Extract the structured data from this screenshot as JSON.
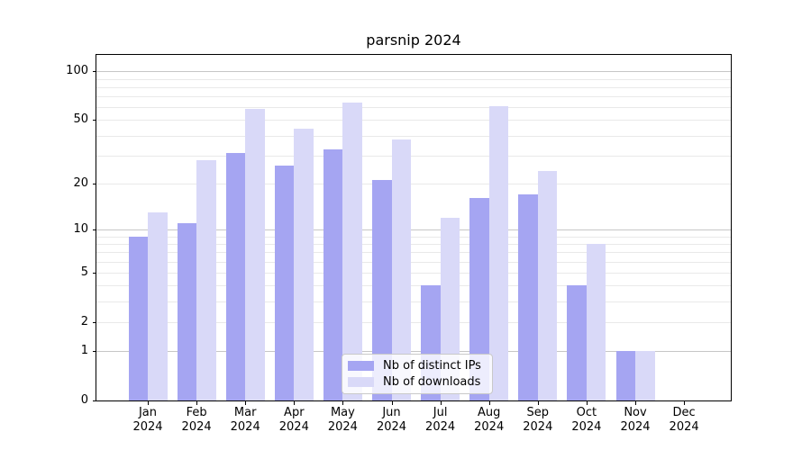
{
  "title": "parsnip 2024",
  "chart_data": {
    "type": "bar",
    "title": "parsnip 2024",
    "categories": [
      "Jan 2024",
      "Feb 2024",
      "Mar 2024",
      "Apr 2024",
      "May 2024",
      "Jun 2024",
      "Jul 2024",
      "Aug 2024",
      "Sep 2024",
      "Oct 2024",
      "Nov 2024",
      "Dec 2024"
    ],
    "series": [
      {
        "name": "Nb of distinct IPs",
        "color": "#a5a5f2",
        "values": [
          9,
          11,
          31,
          26,
          33,
          21,
          4,
          16,
          17,
          4,
          1,
          0
        ]
      },
      {
        "name": "Nb of downloads",
        "color": "#d9d9f8",
        "values": [
          13,
          28,
          59,
          44,
          64,
          38,
          12,
          61,
          24,
          8,
          1,
          0
        ]
      }
    ],
    "xlabel": "",
    "ylabel": "",
    "y_scale": "log1p",
    "y_ticks": [
      0,
      1,
      2,
      5,
      10,
      20,
      50,
      100
    ],
    "minor_gridlines": [
      2,
      3,
      4,
      5,
      6,
      7,
      8,
      9,
      20,
      30,
      40,
      50,
      60,
      70,
      80,
      90
    ],
    "major_gridlines": [
      1,
      10,
      100
    ],
    "ylim": [
      0,
      127
    ],
    "grid": true,
    "legend_position": "inside-bottom-center",
    "axis_color": "#000000",
    "minor_grid_color": "#e9e9e9",
    "major_grid_color": "#c6c6c6"
  }
}
